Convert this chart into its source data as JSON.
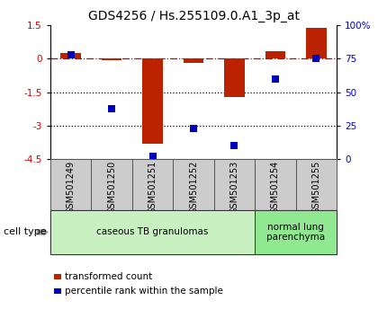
{
  "title": "GDS4256 / Hs.255109.0.A1_3p_at",
  "samples": [
    "GSM501249",
    "GSM501250",
    "GSM501251",
    "GSM501252",
    "GSM501253",
    "GSM501254",
    "GSM501255"
  ],
  "transformed_count": [
    0.25,
    -0.05,
    -3.8,
    -0.2,
    -1.7,
    0.35,
    1.4
  ],
  "percentile_rank": [
    78,
    38,
    2,
    23,
    10,
    60,
    75
  ],
  "ylim": [
    -4.5,
    1.5
  ],
  "yticks_left": [
    1.5,
    0,
    -1.5,
    -3,
    -4.5
  ],
  "ytick_labels_left": [
    "1.5",
    "0",
    "-1.5",
    "-3",
    "-4.5"
  ],
  "ytick_labels_right": [
    "100%",
    "75",
    "50",
    "25",
    "0"
  ],
  "hlines": [
    0,
    -1.5,
    -3
  ],
  "hline_styles": [
    "dashdot",
    "dotted",
    "dotted"
  ],
  "hline_colors": [
    "#cc0000",
    "#000000",
    "#000000"
  ],
  "bar_color": "#bb2200",
  "dot_color": "#0000bb",
  "cell_type_groups": [
    {
      "label": "caseous TB granulomas",
      "indices": [
        0,
        1,
        2,
        3,
        4
      ],
      "color": "#c8f0c0"
    },
    {
      "label": "normal lung\nparenchyma",
      "indices": [
        5,
        6
      ],
      "color": "#90e890"
    }
  ],
  "cell_type_label": "cell type",
  "legend_items": [
    {
      "color": "#bb2200",
      "label": "transformed count"
    },
    {
      "color": "#0000bb",
      "label": "percentile rank within the sample"
    }
  ],
  "bar_width": 0.5,
  "dot_size": 40,
  "tick_label_color_left": "#cc0000",
  "tick_label_color_right": "#0000cc",
  "title_fontsize": 10,
  "tick_fontsize": 7.5,
  "sample_label_fontsize": 7,
  "gray_box_color": "#cccccc",
  "gray_box_edge": "#555555"
}
